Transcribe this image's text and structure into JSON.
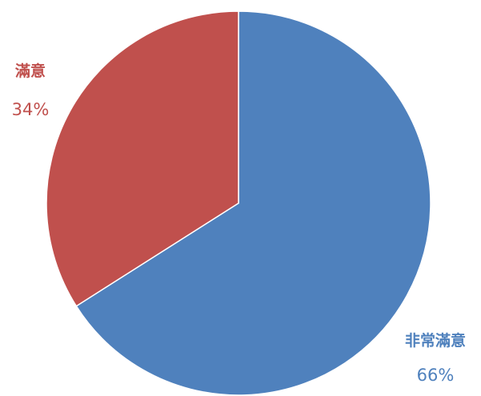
{
  "chart_data": {
    "type": "pie",
    "title": "",
    "slices": [
      {
        "label": "非常滿意",
        "value": 66,
        "percent_label": "66%",
        "color": "#4F81BD"
      },
      {
        "label": "滿意",
        "value": 34,
        "percent_label": "34%",
        "color": "#C0504D"
      }
    ],
    "start_angle_deg": 0,
    "direction": "clockwise",
    "legend": "none",
    "data_labels": "outside"
  }
}
